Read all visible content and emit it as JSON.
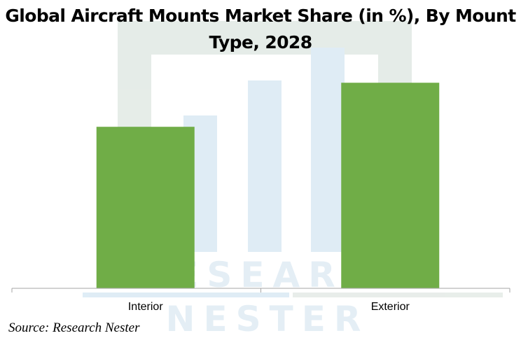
{
  "chart_data": {
    "type": "bar",
    "title": "Global Aircraft Mounts Market Share (in %), By Mount Type, 2028",
    "categories": [
      "Interior",
      "Exterior"
    ],
    "values": [
      44,
      56
    ],
    "xlabel": "",
    "ylabel": "",
    "ylim": [
      0,
      60
    ],
    "grid": false,
    "legend": "none",
    "bar_color": "#70AD47",
    "axis_color": "#A6A6A6"
  },
  "source": "Source: Research Nester",
  "watermark": "RESEARCH NESTER"
}
